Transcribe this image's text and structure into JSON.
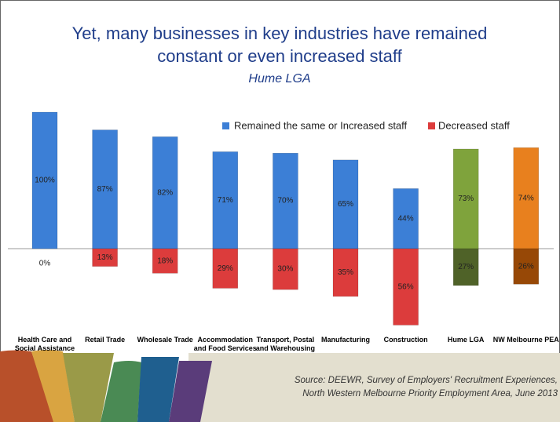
{
  "title": [
    "Yet, many businesses in key industries have remained",
    "constant or even increased staff"
  ],
  "source": [
    "Source:  DEEWR, Survey of Employers' Recruitment Experiences,",
    "North Western Melbourne Priority Employment Area, June 2013"
  ],
  "chart_data": {
    "type": "bar",
    "subtitle": "Hume LGA",
    "categories": [
      "Health Care and Social Assistance",
      "Retail Trade",
      "Wholesale Trade",
      "Accommodation and Food Services",
      "Transport, Postal and Warehousing",
      "Manufacturing",
      "Construction",
      "Hume LGA",
      "NW Melbourne PEA"
    ],
    "series": [
      {
        "name": "Remained the same or Increased staff",
        "color": "#3c7fd6",
        "colors": [
          "#3c7fd6",
          "#3c7fd6",
          "#3c7fd6",
          "#3c7fd6",
          "#3c7fd6",
          "#3c7fd6",
          "#3c7fd6",
          "#7fa33c",
          "#e8801e"
        ],
        "values": [
          100,
          87,
          82,
          71,
          70,
          65,
          44,
          73,
          74
        ],
        "value_labels": [
          "100%",
          "87%",
          "82%",
          "71%",
          "70%",
          "65%",
          "44%",
          "73%",
          "74%"
        ]
      },
      {
        "name": "Decreased staff",
        "color": "#dc3c3c",
        "colors": [
          "#dc3c3c",
          "#dc3c3c",
          "#dc3c3c",
          "#dc3c3c",
          "#dc3c3c",
          "#dc3c3c",
          "#dc3c3c",
          "#4f6228",
          "#974806"
        ],
        "values": [
          0,
          13,
          18,
          29,
          30,
          35,
          56,
          27,
          26
        ],
        "value_labels": [
          "0%",
          "13%",
          "18%",
          "29%",
          "30%",
          "35%",
          "56%",
          "27%",
          "26%"
        ]
      }
    ]
  }
}
